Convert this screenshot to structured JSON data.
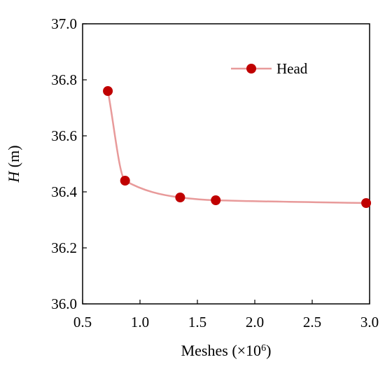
{
  "chart_data": {
    "type": "scatter",
    "title": "",
    "xlabel": "Meshes (×10",
    "xlabel_exponent": "6",
    "xlabel_close": ")",
    "ylabel_symbol": "H",
    "ylabel_unit": " (m)",
    "xlim": [
      0.5,
      3.0
    ],
    "ylim": [
      36.0,
      37.0
    ],
    "xticks": [
      "0.5",
      "1.0",
      "1.5",
      "2.0",
      "2.5",
      "3.0"
    ],
    "yticks": [
      "36.0",
      "36.2",
      "36.4",
      "36.6",
      "36.8",
      "37.0"
    ],
    "grid": false,
    "legend_position": "top-right",
    "series": [
      {
        "name": "Head",
        "marker_color": "#C00000",
        "line_color": "#E89A9A",
        "line": "smooth",
        "x": [
          0.72,
          0.87,
          1.35,
          1.66,
          2.97
        ],
        "y": [
          36.76,
          36.44,
          36.38,
          36.37,
          36.36
        ]
      }
    ]
  }
}
